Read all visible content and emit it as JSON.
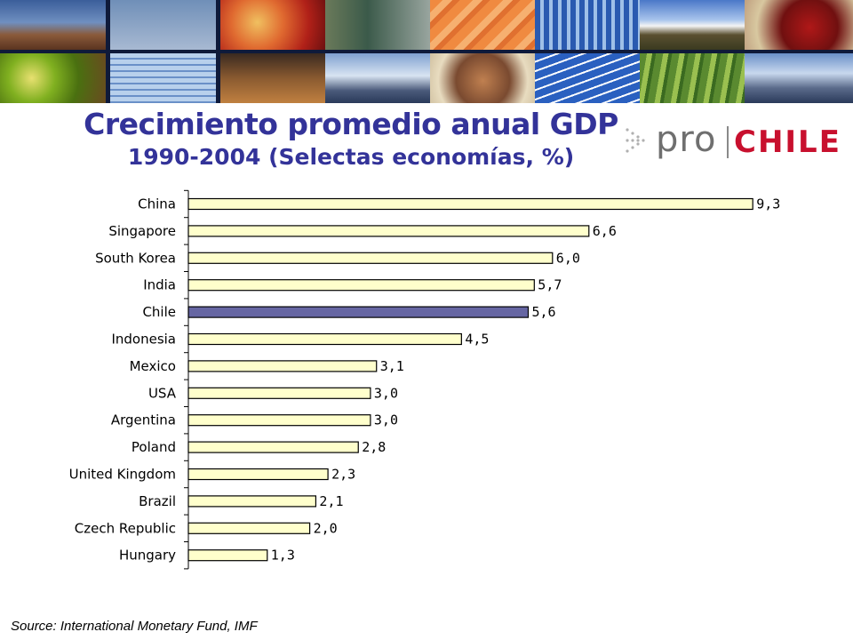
{
  "colors": {
    "title": "#333399",
    "bar_default": "#FFFFCC",
    "bar_highlight": "#6666A3",
    "bar_stroke": "#000000",
    "logo_gray": "#6f6f6f",
    "logo_red": "#c8102e"
  },
  "header": {
    "title": "Crecimiento promedio anual GDP",
    "subtitle": "1990-2004 (Selectas economías, %)"
  },
  "logo": {
    "pro": "pro",
    "chile": "CHILE"
  },
  "source": "Source: International Monetary Fund, IMF",
  "chart_data": {
    "type": "bar",
    "orientation": "horizontal",
    "title": "",
    "xlabel": "",
    "ylabel": "",
    "xlim": [
      0,
      10
    ],
    "grid": false,
    "legend": "none",
    "highlight": "Chile",
    "categories": [
      "China",
      "Singapore",
      "South Korea",
      "India",
      "Chile",
      "Indonesia",
      "Mexico",
      "USA",
      "Argentina",
      "Poland",
      "United Kingdom",
      "Brazil",
      "Czech Republic",
      "Hungary"
    ],
    "values": [
      9.3,
      6.6,
      6.0,
      5.7,
      5.6,
      4.5,
      3.1,
      3.0,
      3.0,
      2.8,
      2.3,
      2.1,
      2.0,
      1.3
    ],
    "value_labels": [
      "9,3",
      "6,6",
      "6,0",
      "5,7",
      "5,6",
      "4,5",
      "3,1",
      "3,0",
      "3,0",
      "2,8",
      "2,3",
      "2,1",
      "2,0",
      "1,3"
    ]
  }
}
